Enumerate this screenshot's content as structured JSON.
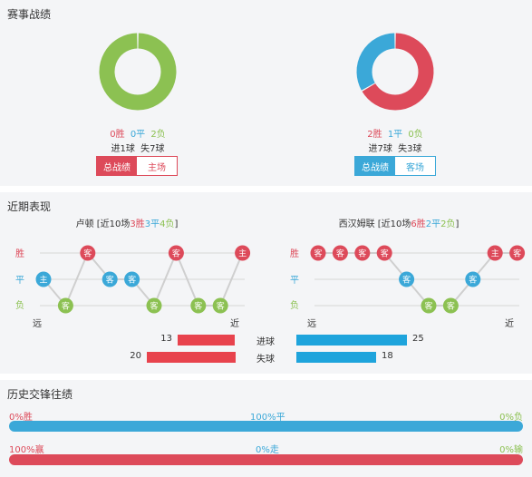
{
  "record": {
    "title": "赛事战绩",
    "left": {
      "win": "0胜",
      "draw": "0平",
      "loss": "2负",
      "goals_for": "进1球",
      "goals_against": "失7球",
      "tab_active": "总战绩",
      "tab_other": "主场",
      "ring": {
        "win": 0,
        "draw": 0,
        "loss": 2
      }
    },
    "right": {
      "win": "2胜",
      "draw": "1平",
      "loss": "0负",
      "goals_for": "进7球",
      "goals_against": "失3球",
      "tab_active": "总战绩",
      "tab_other": "客场",
      "ring": {
        "win": 2,
        "draw": 1,
        "loss": 0
      }
    }
  },
  "recent": {
    "title": "近期表现",
    "labels": {
      "win": "胜",
      "draw": "平",
      "loss": "负",
      "far": "远",
      "near": "近"
    },
    "left": {
      "team": "卢顿",
      "prefix": " [近10场",
      "w": "3胜",
      "d": "3平",
      "l": "4负",
      "suffix": "]",
      "form": [
        {
          "r": "d",
          "t": "主"
        },
        {
          "r": "l",
          "t": "客"
        },
        {
          "r": "w",
          "t": "客"
        },
        {
          "r": "d",
          "t": "客"
        },
        {
          "r": "d",
          "t": "客"
        },
        {
          "r": "l",
          "t": "客"
        },
        {
          "r": "w",
          "t": "客"
        },
        {
          "r": "l",
          "t": "客"
        },
        {
          "r": "l",
          "t": "客"
        },
        {
          "r": "w",
          "t": "主"
        }
      ]
    },
    "right": {
      "team": "西汉姆联",
      "prefix": " [近10场",
      "w": "6胜",
      "d": "2平",
      "l": "2负",
      "suffix": "]",
      "form": [
        {
          "r": "w",
          "t": "客"
        },
        {
          "r": "w",
          "t": "客"
        },
        {
          "r": "w",
          "t": "客"
        },
        {
          "r": "w",
          "t": "客"
        },
        {
          "r": "d",
          "t": "客"
        },
        {
          "r": "l",
          "t": "客"
        },
        {
          "r": "l",
          "t": "客"
        },
        {
          "r": "d",
          "t": "客"
        },
        {
          "r": "w",
          "t": "主"
        },
        {
          "r": "w",
          "t": "客"
        }
      ]
    },
    "goals": {
      "scored_label": "进球",
      "conceded_label": "失球",
      "left_scored": 13,
      "left_conceded": 20,
      "right_scored": 25,
      "right_conceded": 18
    }
  },
  "h2h": {
    "title": "历史交锋往绩",
    "row1": {
      "left": "0%胜",
      "mid": "100%平",
      "right": "0%负",
      "fill_win": 0,
      "fill_draw": 1,
      "fill_loss": 0
    },
    "row2": {
      "left": "100%赢",
      "mid": "0%走",
      "right": "0%输",
      "fill_win": 1,
      "fill_push": 0,
      "fill_loss": 0
    }
  },
  "colors": {
    "win": "#dd4a5a",
    "draw": "#3ba8d8",
    "loss": "#8cc152",
    "goal_left": "#e8434d",
    "goal_right": "#1ea4dc"
  }
}
